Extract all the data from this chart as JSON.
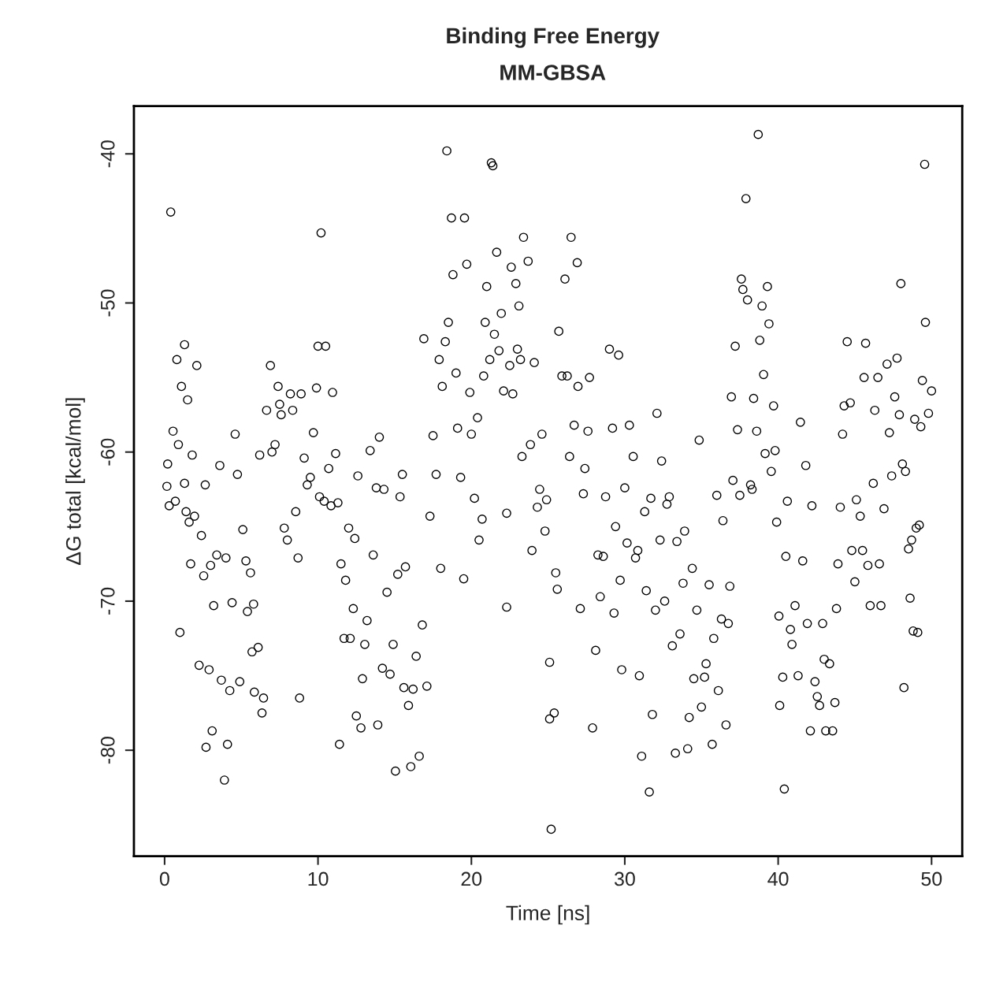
{
  "chart_data": {
    "type": "scatter",
    "title": "Binding Free Energy",
    "subtitle": "MM-GBSA",
    "xlabel": "Time [ns]",
    "ylabel": "ΔG total [kcal/mol]",
    "xlim": [
      -2,
      52
    ],
    "ylim": [
      -87.1,
      -36.8
    ],
    "xticks": [
      0,
      10,
      20,
      30,
      40,
      50
    ],
    "yticks": [
      -80,
      -70,
      -60,
      -50,
      -40
    ],
    "grid": false,
    "legend": false,
    "marker": "circle",
    "series": [
      {
        "color": "#000000",
        "x": [
          0.15,
          0.2,
          0.3,
          0.4,
          0.55,
          0.7,
          0.8,
          0.9,
          1.0,
          1.1,
          1.3,
          1.3,
          1.4,
          1.5,
          1.6,
          1.7,
          1.8,
          1.95,
          2.1,
          2.25,
          2.4,
          2.55,
          2.65,
          2.7,
          2.9,
          3.0,
          3.1,
          3.2,
          3.4,
          3.6,
          3.7,
          3.9,
          4.0,
          4.1,
          4.25,
          4.4,
          4.6,
          4.75,
          4.9,
          5.1,
          5.3,
          5.4,
          5.6,
          5.7,
          5.8,
          5.85,
          6.1,
          6.2,
          6.35,
          6.45,
          6.65,
          6.9,
          7.0,
          7.2,
          7.4,
          7.5,
          7.6,
          7.8,
          8.0,
          8.2,
          8.35,
          8.55,
          8.7,
          8.8,
          8.9,
          9.1,
          9.3,
          9.5,
          9.7,
          9.9,
          10.0,
          10.1,
          10.2,
          10.4,
          10.5,
          10.7,
          10.85,
          10.95,
          11.15,
          11.3,
          11.4,
          11.5,
          11.7,
          11.8,
          12.0,
          12.1,
          12.3,
          12.4,
          12.5,
          12.6,
          12.8,
          12.9,
          13.05,
          13.2,
          13.4,
          13.6,
          13.8,
          13.9,
          14.0,
          14.2,
          14.3,
          14.5,
          14.7,
          14.9,
          15.05,
          15.2,
          15.35,
          15.5,
          15.6,
          15.7,
          15.9,
          16.05,
          16.2,
          16.4,
          16.6,
          16.8,
          16.9,
          17.1,
          17.3,
          17.5,
          17.7,
          17.9,
          18.0,
          18.1,
          18.3,
          18.4,
          18.5,
          18.7,
          18.8,
          19.0,
          19.1,
          19.3,
          19.5,
          19.55,
          19.7,
          19.9,
          20.0,
          20.2,
          20.4,
          20.5,
          20.7,
          20.8,
          20.9,
          21.0,
          21.2,
          21.3,
          21.4,
          21.5,
          21.65,
          21.8,
          21.95,
          22.1,
          22.3,
          22.3,
          22.5,
          22.6,
          22.7,
          22.9,
          23.0,
          23.1,
          23.2,
          23.3,
          23.4,
          23.7,
          23.85,
          23.95,
          24.1,
          24.3,
          24.45,
          24.6,
          24.8,
          24.9,
          25.1,
          25.1,
          25.2,
          25.4,
          25.5,
          25.6,
          25.7,
          25.9,
          26.1,
          26.25,
          26.4,
          26.5,
          26.7,
          26.9,
          26.95,
          27.1,
          27.3,
          27.4,
          27.6,
          27.7,
          27.9,
          28.1,
          28.25,
          28.4,
          28.6,
          28.75,
          29.0,
          29.2,
          29.3,
          29.4,
          29.6,
          29.7,
          29.8,
          30.0,
          30.15,
          30.3,
          30.55,
          30.7,
          30.85,
          30.95,
          31.1,
          31.3,
          31.4,
          31.6,
          31.7,
          31.8,
          32.0,
          32.1,
          32.3,
          32.4,
          32.6,
          32.75,
          32.9,
          33.1,
          33.3,
          33.4,
          33.6,
          33.8,
          33.9,
          34.1,
          34.2,
          34.4,
          34.5,
          34.7,
          34.85,
          35.0,
          35.2,
          35.3,
          35.5,
          35.7,
          35.8,
          36.0,
          36.1,
          36.3,
          36.4,
          36.6,
          36.75,
          36.85,
          36.95,
          37.05,
          37.2,
          37.35,
          37.5,
          37.6,
          37.7,
          37.9,
          38.0,
          38.2,
          38.3,
          38.4,
          38.6,
          38.7,
          38.8,
          38.95,
          39.05,
          39.15,
          39.3,
          39.4,
          39.55,
          39.7,
          39.8,
          39.9,
          40.05,
          40.1,
          40.3,
          40.4,
          40.5,
          40.6,
          40.8,
          40.9,
          41.1,
          41.3,
          41.45,
          41.6,
          41.8,
          41.9,
          42.1,
          42.2,
          42.4,
          42.55,
          42.7,
          42.9,
          43.0,
          43.1,
          43.35,
          43.55,
          43.7,
          43.8,
          43.9,
          44.05,
          44.2,
          44.3,
          44.5,
          44.7,
          44.8,
          45.0,
          45.1,
          45.35,
          45.5,
          45.6,
          45.7,
          45.85,
          46.0,
          46.2,
          46.3,
          46.5,
          46.6,
          46.7,
          46.9,
          47.1,
          47.25,
          47.4,
          47.6,
          47.75,
          47.9,
          48.0,
          48.1,
          48.2,
          48.3,
          48.5,
          48.6,
          48.7,
          48.8,
          48.9,
          49.0,
          49.1,
          49.2,
          49.3,
          49.4,
          49.55,
          49.6,
          49.8,
          50.0
        ],
        "values": [
          -62.3,
          -60.8,
          -63.6,
          -43.9,
          -58.6,
          -63.3,
          -53.8,
          -59.5,
          -72.1,
          -55.6,
          -62.1,
          -52.8,
          -64.0,
          -56.5,
          -64.7,
          -67.5,
          -60.2,
          -64.3,
          -54.2,
          -74.3,
          -65.6,
          -68.3,
          -62.2,
          -79.8,
          -74.6,
          -67.6,
          -78.7,
          -70.3,
          -66.9,
          -60.9,
          -75.3,
          -82.0,
          -67.1,
          -79.6,
          -76.0,
          -70.1,
          -58.8,
          -61.5,
          -75.4,
          -65.2,
          -67.3,
          -70.7,
          -68.1,
          -73.4,
          -70.2,
          -76.1,
          -73.1,
          -60.2,
          -77.5,
          -76.5,
          -57.2,
          -54.2,
          -60.0,
          -59.5,
          -55.6,
          -56.8,
          -57.5,
          -65.1,
          -65.9,
          -56.1,
          -57.2,
          -64.0,
          -67.1,
          -76.5,
          -56.1,
          -60.4,
          -62.2,
          -61.7,
          -58.7,
          -55.7,
          -52.9,
          -63.0,
          -45.3,
          -63.3,
          -52.9,
          -61.1,
          -63.6,
          -56.0,
          -60.1,
          -63.4,
          -79.6,
          -67.5,
          -72.5,
          -68.6,
          -65.1,
          -72.5,
          -70.5,
          -65.8,
          -77.7,
          -61.6,
          -78.5,
          -75.2,
          -72.9,
          -71.3,
          -59.9,
          -66.9,
          -62.4,
          -78.3,
          -59.0,
          -74.5,
          -62.5,
          -69.4,
          -74.9,
          -72.9,
          -81.4,
          -68.2,
          -63.0,
          -61.5,
          -75.8,
          -67.7,
          -77.0,
          -81.1,
          -75.9,
          -73.7,
          -80.4,
          -71.6,
          -52.4,
          -75.7,
          -64.3,
          -58.9,
          -61.5,
          -53.8,
          -67.8,
          -55.6,
          -52.6,
          -39.8,
          -51.3,
          -44.3,
          -48.1,
          -54.7,
          -58.4,
          -61.7,
          -68.5,
          -44.3,
          -47.4,
          -56.0,
          -58.8,
          -63.1,
          -57.7,
          -65.9,
          -64.5,
          -54.9,
          -51.3,
          -48.9,
          -53.8,
          -40.6,
          -40.8,
          -52.1,
          -46.6,
          -53.2,
          -50.7,
          -55.9,
          -64.1,
          -70.4,
          -54.2,
          -47.6,
          -56.1,
          -48.7,
          -53.1,
          -50.2,
          -53.8,
          -60.3,
          -45.6,
          -47.2,
          -59.5,
          -66.6,
          -54.0,
          -63.7,
          -62.5,
          -58.8,
          -65.3,
          -63.2,
          -77.9,
          -74.1,
          -85.3,
          -77.5,
          -68.1,
          -69.2,
          -51.9,
          -54.9,
          -48.4,
          -54.9,
          -60.3,
          -45.6,
          -58.2,
          -47.3,
          -55.6,
          -70.5,
          -62.8,
          -61.1,
          -58.6,
          -55.0,
          -78.5,
          -73.3,
          -66.9,
          -69.7,
          -67.0,
          -63.0,
          -53.1,
          -58.4,
          -70.8,
          -65.0,
          -53.5,
          -68.6,
          -74.6,
          -62.4,
          -66.1,
          -58.2,
          -60.3,
          -67.1,
          -66.6,
          -75.0,
          -80.4,
          -64.0,
          -69.3,
          -82.8,
          -63.1,
          -77.6,
          -70.6,
          -57.4,
          -65.9,
          -60.6,
          -70.0,
          -63.5,
          -63.0,
          -73.0,
          -80.2,
          -66.0,
          -72.2,
          -68.8,
          -65.3,
          -79.9,
          -77.8,
          -67.8,
          -75.2,
          -70.6,
          -59.2,
          -77.1,
          -75.1,
          -74.2,
          -68.9,
          -79.6,
          -72.5,
          -62.9,
          -76.0,
          -71.2,
          -64.6,
          -78.3,
          -71.5,
          -69.0,
          -56.3,
          -61.9,
          -52.9,
          -58.5,
          -62.9,
          -48.4,
          -49.1,
          -43.0,
          -49.8,
          -62.2,
          -62.5,
          -56.4,
          -58.6,
          -38.7,
          -52.5,
          -50.2,
          -54.8,
          -60.1,
          -48.9,
          -51.4,
          -61.3,
          -56.9,
          -59.9,
          -64.7,
          -71.0,
          -77.0,
          -75.1,
          -82.6,
          -67.0,
          -63.3,
          -71.9,
          -72.9,
          -70.3,
          -75.0,
          -58.0,
          -67.3,
          -60.9,
          -71.5,
          -78.7,
          -63.6,
          -75.4,
          -76.4,
          -77.0,
          -71.5,
          -73.9,
          -78.7,
          -74.2,
          -78.7,
          -76.8,
          -70.5,
          -67.5,
          -63.7,
          -58.8,
          -56.9,
          -52.6,
          -56.7,
          -66.6,
          -68.7,
          -63.2,
          -64.3,
          -66.6,
          -55.0,
          -52.7,
          -67.6,
          -70.3,
          -62.1,
          -57.2,
          -55.0,
          -67.5,
          -70.3,
          -63.8,
          -54.1,
          -58.7,
          -61.6,
          -56.3,
          -53.7,
          -57.5,
          -48.7,
          -60.8,
          -75.8,
          -61.3,
          -66.5,
          -69.8,
          -65.9,
          -72.0,
          -57.8,
          -65.1,
          -72.1,
          -64.9,
          -58.3,
          -55.2,
          -40.7,
          -51.3,
          -57.4,
          -55.9
        ]
      }
    ]
  }
}
